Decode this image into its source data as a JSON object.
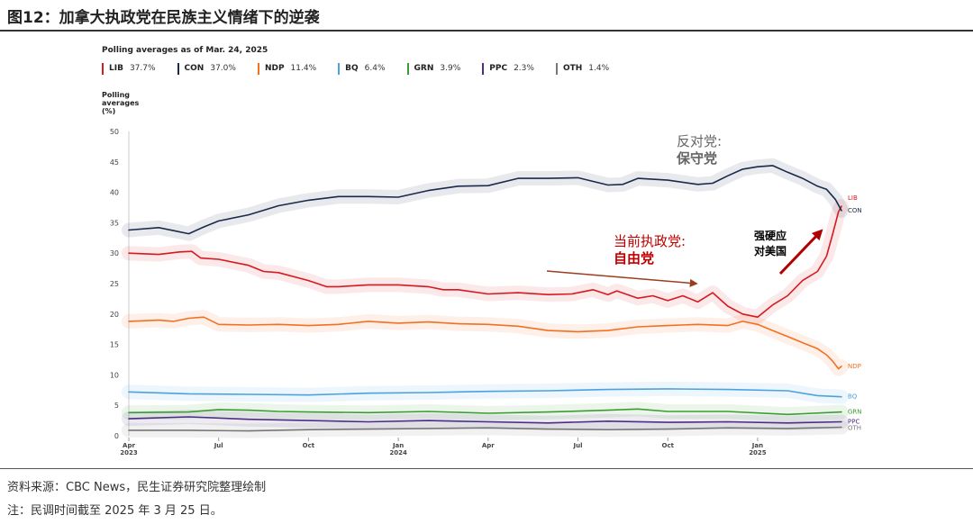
{
  "figure_title": "图12：加拿大执政党在民族主义情绪下的逆袭",
  "source_text": "资料来源：CBC News，民生证券研究院整理绘制",
  "note_text": "注：民调时间截至 2025 年 3 月 25 日。",
  "poll_title": "Polling averages as of Mar. 24, 2025",
  "y_title_lines": [
    "Polling",
    "averages",
    "(%)"
  ],
  "annotations": {
    "opposition_line1": "反对党:",
    "opposition_line2": "保守党",
    "ruling_line1": "当前执政党:",
    "ruling_line2": "自由党",
    "tough_line1": "强硬应",
    "tough_line2": "对美国"
  },
  "colors": {
    "LIB": "#d71920",
    "CON": "#1a2a4a",
    "NDP": "#f37021",
    "BQ": "#4aa3df",
    "GRN": "#3d9b35",
    "PPC": "#4b2d83",
    "OTH": "#777777",
    "annotation_red": "#c00000",
    "annotation_gray": "#666666"
  },
  "chart_data": {
    "type": "line",
    "title": "Polling averages as of Mar. 24, 2025",
    "ylabel": "Polling averages (%)",
    "xlabel": "",
    "ylim": [
      0,
      50
    ],
    "yticks": [
      0,
      5,
      10,
      15,
      20,
      25,
      30,
      35,
      40,
      45,
      50
    ],
    "xrange_months": [
      0,
      23.8
    ],
    "x_ticks": [
      {
        "m": 0,
        "label": "Apr",
        "year": "2023"
      },
      {
        "m": 3,
        "label": "Jul",
        "year": ""
      },
      {
        "m": 6,
        "label": "Oct",
        "year": ""
      },
      {
        "m": 9,
        "label": "Jan",
        "year": "2024"
      },
      {
        "m": 12,
        "label": "Apr",
        "year": ""
      },
      {
        "m": 15,
        "label": "Jul",
        "year": ""
      },
      {
        "m": 18,
        "label": "Oct",
        "year": ""
      },
      {
        "m": 21,
        "label": "Jan",
        "year": "2025"
      }
    ],
    "series": [
      {
        "name": "LIB",
        "legend_value": "37.7%",
        "end_label": "LIB",
        "x": [
          0,
          1,
          1.7,
          2.1,
          2.4,
          3,
          4,
          4.5,
          5,
          6,
          6.6,
          7,
          8,
          9,
          10,
          10.5,
          11,
          12,
          13,
          14,
          14.8,
          15.5,
          16,
          16.3,
          17,
          17.5,
          18,
          18.5,
          19,
          19.5,
          20,
          20.5,
          21,
          21.5,
          22,
          22.5,
          23,
          23.3,
          23.5,
          23.7,
          23.8
        ],
        "values": [
          30,
          29.8,
          30.2,
          30.3,
          29.2,
          29,
          28,
          27,
          26.8,
          25.5,
          24.5,
          24.5,
          24.8,
          24.8,
          24.5,
          24,
          24,
          23.3,
          23.5,
          23.2,
          23.3,
          24,
          23.2,
          23.8,
          22.6,
          23,
          22.2,
          23,
          22,
          23.5,
          21.3,
          20,
          19.5,
          21.5,
          23,
          25.5,
          27,
          29.5,
          33,
          36.8,
          37.7
        ]
      },
      {
        "name": "CON",
        "legend_value": "37.0%",
        "end_label": "CON",
        "x": [
          0,
          1,
          1.5,
          2,
          2.5,
          3,
          4,
          5,
          6,
          7,
          8,
          9,
          10,
          11,
          12,
          13,
          14,
          15,
          16,
          16.5,
          17,
          18,
          19,
          19.5,
          20,
          20.5,
          21,
          21.5,
          22,
          22.5,
          23,
          23.3,
          23.6,
          23.8
        ],
        "values": [
          33.8,
          34.2,
          33.7,
          33.2,
          34.3,
          35.3,
          36.3,
          37.8,
          38.7,
          39.3,
          39.3,
          39.2,
          40.3,
          41,
          41.1,
          42.3,
          42.3,
          42.4,
          41.2,
          41.3,
          42.3,
          42,
          41.3,
          41.5,
          42.7,
          43.8,
          44.2,
          44.4,
          43.3,
          42.3,
          41,
          40.5,
          38.8,
          37
        ]
      },
      {
        "name": "NDP",
        "legend_value": "11.4%",
        "end_label": "NDP",
        "x": [
          0,
          1,
          1.5,
          2,
          2.5,
          3,
          4,
          5,
          6,
          7,
          8,
          9,
          10,
          11,
          12,
          13,
          14,
          15,
          16,
          17,
          18,
          19,
          20,
          20.5,
          21,
          21.5,
          22,
          22.5,
          23,
          23.3,
          23.5,
          23.7,
          23.8
        ],
        "values": [
          18.8,
          19,
          18.8,
          19.3,
          19.5,
          18.3,
          18.2,
          18.3,
          18.1,
          18.3,
          18.8,
          18.5,
          18.7,
          18.4,
          18.3,
          18.0,
          17.3,
          17.1,
          17.3,
          17.9,
          18.1,
          18.3,
          18.1,
          18.8,
          18.3,
          17.3,
          16.3,
          15.3,
          14.3,
          13.3,
          12.3,
          11.0,
          11.4
        ]
      },
      {
        "name": "BQ",
        "legend_value": "6.4%",
        "end_label": "BQ",
        "x": [
          0,
          2,
          4,
          6,
          8,
          10,
          12,
          14,
          16,
          18,
          20,
          22,
          23,
          23.8
        ],
        "values": [
          7.2,
          6.9,
          6.8,
          6.7,
          7.0,
          7.1,
          7.3,
          7.4,
          7.6,
          7.7,
          7.6,
          7.4,
          6.6,
          6.4
        ]
      },
      {
        "name": "GRN",
        "legend_value": "3.9%",
        "end_label": "GRN",
        "x": [
          0,
          2,
          3,
          4,
          5,
          6,
          8,
          10,
          12,
          14,
          16,
          17,
          18,
          20,
          22,
          23.8
        ],
        "values": [
          3.8,
          3.9,
          4.3,
          4.2,
          4.0,
          3.9,
          3.8,
          4.0,
          3.7,
          3.9,
          4.2,
          4.4,
          4.0,
          4.0,
          3.5,
          3.9
        ]
      },
      {
        "name": "PPC",
        "legend_value": "2.3%",
        "end_label": "PPC",
        "x": [
          0,
          2,
          4,
          6,
          8,
          10,
          12,
          14,
          16,
          18,
          20,
          22,
          23.8
        ],
        "values": [
          2.8,
          3.1,
          2.7,
          2.5,
          2.3,
          2.5,
          2.3,
          2.1,
          2.4,
          2.2,
          2.3,
          2.1,
          2.3
        ]
      },
      {
        "name": "OTH",
        "legend_value": "1.4%",
        "end_label": "OTH",
        "x": [
          0,
          2,
          4,
          6,
          8,
          10,
          12,
          14,
          16,
          18,
          20,
          22,
          23.8
        ],
        "values": [
          0.9,
          0.9,
          0.8,
          1.0,
          1.1,
          1.2,
          1.3,
          1.1,
          1.0,
          1.1,
          1.3,
          1.2,
          1.4
        ]
      }
    ]
  }
}
